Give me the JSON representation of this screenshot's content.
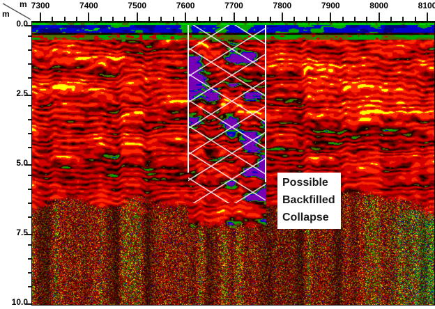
{
  "chart_data": {
    "type": "heatmap",
    "subtype": "GPR radargram depth section",
    "title": "",
    "x_axis": {
      "unit": "m",
      "tick_labels": [
        "7300",
        "7400",
        "7500",
        "7600",
        "7700",
        "7800",
        "7900",
        "8000",
        "8100"
      ],
      "tick_values": [
        7300,
        7400,
        7500,
        7600,
        7700,
        7800,
        7900,
        8000,
        8100
      ],
      "minor_step": 25,
      "range": [
        7283,
        8116
      ],
      "position": "top"
    },
    "y_axis": {
      "unit": "m",
      "tick_labels": [
        "0.0",
        "2.5",
        "5.0",
        "7.5",
        "10.0"
      ],
      "tick_values": [
        0,
        2.5,
        5,
        7.5,
        10
      ],
      "minor_step": 0.5,
      "range": [
        0,
        10.15
      ],
      "direction": "down",
      "position": "left"
    },
    "palette": {
      "strong_positive": "#ffff00",
      "positive": "#d20000",
      "dark_matrix": "#8c0000",
      "null": "#160200",
      "negative_low": "#00a500",
      "negative_high": "#0000cd",
      "extreme_negative": "#7800b4"
    },
    "annotation": {
      "label": "Possible\nBackfilled\nCollapse",
      "zone_x_start_m": 7605,
      "zone_x_end_m": 7765,
      "zone_depth_top_m": 0.1,
      "boundary_line_depths_m": [
        5.4,
        5.75
      ],
      "hatch_depth_bottom_m": 6.5,
      "marker_style": "white vertical boundary lines with white cross-hatch"
    }
  }
}
